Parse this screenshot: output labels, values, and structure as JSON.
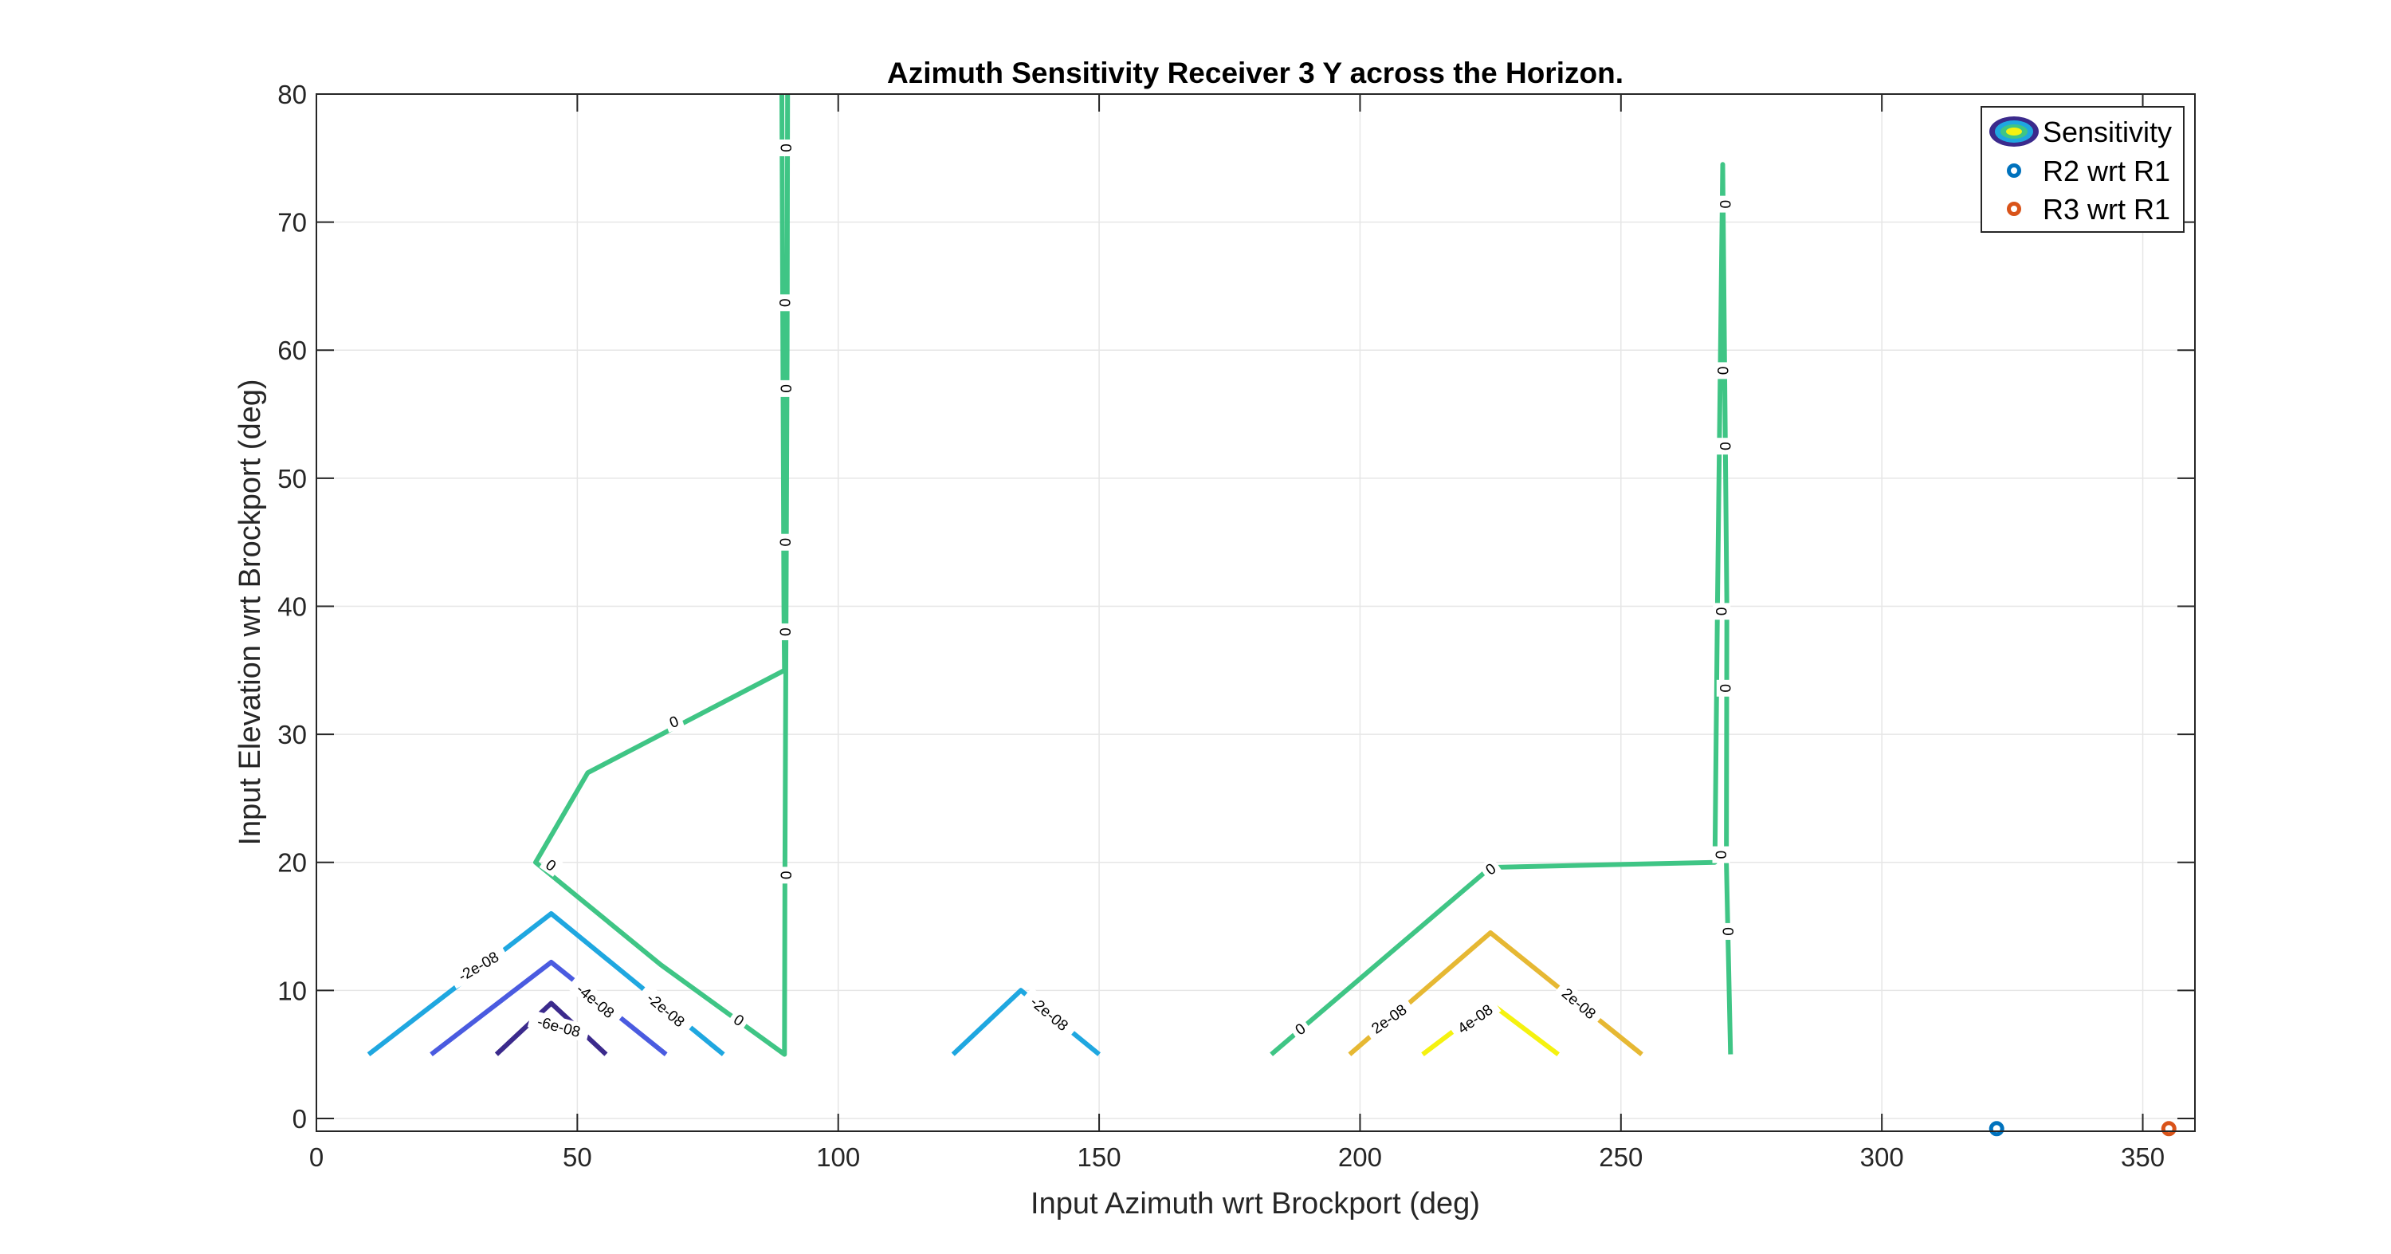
{
  "chart_data": {
    "type": "contour",
    "title": "Azimuth Sensitivity Receiver 3 Y across the Horizon.",
    "xlabel": "Input Azimuth wrt Brockport (deg)",
    "ylabel": "Input Elevation wrt Brockport (deg)",
    "xlim": [
      0,
      360
    ],
    "ylim": [
      -1,
      80
    ],
    "xticks": [
      0,
      50,
      100,
      150,
      200,
      250,
      300,
      350
    ],
    "yticks": [
      0,
      10,
      20,
      30,
      40,
      50,
      60,
      70,
      80
    ],
    "grid": true,
    "legend": {
      "placement": "top-right",
      "entries": [
        "Sensitivity",
        "R2 wrt R1",
        "R3 wrt R1"
      ]
    },
    "colors": {
      "neg6e8": "#3b2a8c",
      "neg4e8": "#4a5be0",
      "neg2e8": "#1fa7e0",
      "zero": "#3fc585",
      "pos2e8": "#e6b833",
      "pos4e8": "#f5f20f",
      "r2": "#0072bd",
      "r3": "#d95319"
    },
    "contours": [
      {
        "level": "0",
        "color_key": "zero",
        "points": [
          [
            89.2,
            80
          ],
          [
            89.4,
            60
          ],
          [
            89.6,
            40
          ],
          [
            89.7,
            35
          ],
          [
            52,
            27
          ],
          [
            42,
            20
          ],
          [
            66,
            12
          ],
          [
            89.7,
            5
          ],
          [
            89.8,
            20
          ],
          [
            90,
            40
          ],
          [
            90.2,
            60
          ],
          [
            90.3,
            80
          ]
        ]
      },
      {
        "level": "0",
        "color_key": "zero",
        "points": [
          [
            183,
            5
          ],
          [
            225,
            19.6
          ],
          [
            268,
            20
          ],
          [
            268.5,
            40
          ],
          [
            269.5,
            74.5
          ],
          [
            270.3,
            40
          ],
          [
            270.2,
            20
          ],
          [
            271,
            5
          ]
        ]
      },
      {
        "level": "-2e-08",
        "color_key": "neg2e8",
        "points": [
          [
            10,
            5
          ],
          [
            45,
            16
          ],
          [
            78,
            5
          ]
        ]
      },
      {
        "level": "-4e-08",
        "color_key": "neg4e8",
        "points": [
          [
            22,
            5
          ],
          [
            45,
            12.2
          ],
          [
            67,
            5
          ]
        ]
      },
      {
        "level": "-6e-08",
        "color_key": "neg6e8",
        "points": [
          [
            34.5,
            5
          ],
          [
            45,
            9
          ],
          [
            55.5,
            5
          ]
        ]
      },
      {
        "level": "-2e-08",
        "color_key": "neg2e8",
        "points": [
          [
            122,
            5
          ],
          [
            135,
            10
          ],
          [
            150,
            5
          ]
        ]
      },
      {
        "level": "2e-08",
        "color_key": "pos2e8",
        "points": [
          [
            198,
            5
          ],
          [
            225,
            14.5
          ],
          [
            254,
            5
          ]
        ]
      },
      {
        "level": "4e-08",
        "color_key": "pos4e8",
        "points": [
          [
            212,
            5
          ],
          [
            225,
            9
          ],
          [
            238,
            5
          ]
        ]
      }
    ],
    "contour_labels": [
      {
        "text": "0",
        "x": 90,
        "y": 75.8,
        "angle": 90
      },
      {
        "text": "0",
        "x": 89.8,
        "y": 63.7,
        "angle": 90
      },
      {
        "text": "0",
        "x": 90,
        "y": 57,
        "angle": 90
      },
      {
        "text": "0",
        "x": 89.9,
        "y": 45,
        "angle": 90
      },
      {
        "text": "0",
        "x": 89.9,
        "y": 38,
        "angle": 90
      },
      {
        "text": "0",
        "x": 90,
        "y": 19,
        "angle": 90
      },
      {
        "text": "0",
        "x": 68.5,
        "y": 31,
        "angle": -20
      },
      {
        "text": "0",
        "x": 45,
        "y": 19.8,
        "angle": 35
      },
      {
        "text": "0",
        "x": 81,
        "y": 7.7,
        "angle": 35
      },
      {
        "text": "-2e-08",
        "x": 31,
        "y": 11.9,
        "angle": -30
      },
      {
        "text": "-4e-08",
        "x": 53.5,
        "y": 9.2,
        "angle": 40
      },
      {
        "text": "-6e-08",
        "x": 46.5,
        "y": 7.2,
        "angle": 15
      },
      {
        "text": "-2e-08",
        "x": 67,
        "y": 8.5,
        "angle": 40
      },
      {
        "text": "-2e-08",
        "x": 140.5,
        "y": 8.2,
        "angle": 40
      },
      {
        "text": "0",
        "x": 188.5,
        "y": 7,
        "angle": -35
      },
      {
        "text": "0",
        "x": 225,
        "y": 19.5,
        "angle": -35
      },
      {
        "text": "2e-08",
        "x": 205.5,
        "y": 7.8,
        "angle": -35
      },
      {
        "text": "4e-08",
        "x": 222,
        "y": 7.8,
        "angle": -35
      },
      {
        "text": "2e-08",
        "x": 242,
        "y": 9,
        "angle": 40
      },
      {
        "text": "0",
        "x": 270,
        "y": 71.4,
        "angle": 90
      },
      {
        "text": "0",
        "x": 269.6,
        "y": 58.4,
        "angle": 90
      },
      {
        "text": "0",
        "x": 270,
        "y": 52.5,
        "angle": 90
      },
      {
        "text": "0",
        "x": 269.3,
        "y": 39.6,
        "angle": 90
      },
      {
        "text": "0",
        "x": 270,
        "y": 33.6,
        "angle": 90
      },
      {
        "text": "0",
        "x": 269.2,
        "y": 20.6,
        "angle": 90
      },
      {
        "text": "0",
        "x": 270.6,
        "y": 14.6,
        "angle": 90
      }
    ],
    "points": [
      {
        "name": "R2 wrt R1",
        "x": 322,
        "y": -0.8,
        "color_key": "r2"
      },
      {
        "name": "R3 wrt R1",
        "x": 355,
        "y": -0.8,
        "color_key": "r3"
      }
    ]
  }
}
